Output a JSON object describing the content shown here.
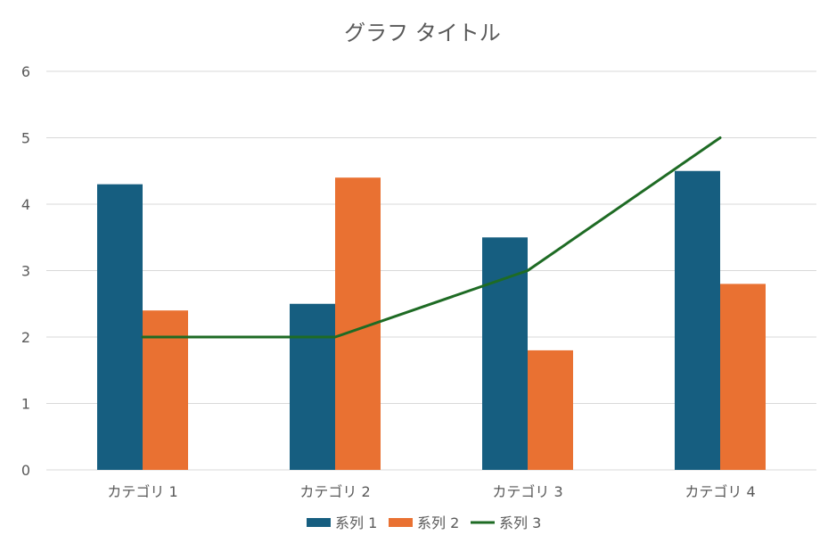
{
  "chart_data": {
    "type": "bar",
    "title": "グラフ タイトル",
    "categories": [
      "カテゴリ 1",
      "カテゴリ 2",
      "カテゴリ 3",
      "カテゴリ 4"
    ],
    "series": [
      {
        "name": "系列 1",
        "type": "bar",
        "color": "#165e80",
        "values": [
          4.3,
          2.5,
          3.5,
          4.5
        ]
      },
      {
        "name": "系列 2",
        "type": "bar",
        "color": "#e97132",
        "values": [
          2.4,
          4.4,
          1.8,
          2.8
        ]
      },
      {
        "name": "系列 3",
        "type": "line",
        "color": "#1e6b24",
        "values": [
          2,
          2,
          3,
          5
        ]
      }
    ],
    "ylim": [
      0,
      6
    ],
    "yticks": [
      0,
      1,
      2,
      3,
      4,
      5,
      6
    ],
    "grid": true,
    "legend_position": "bottom"
  }
}
